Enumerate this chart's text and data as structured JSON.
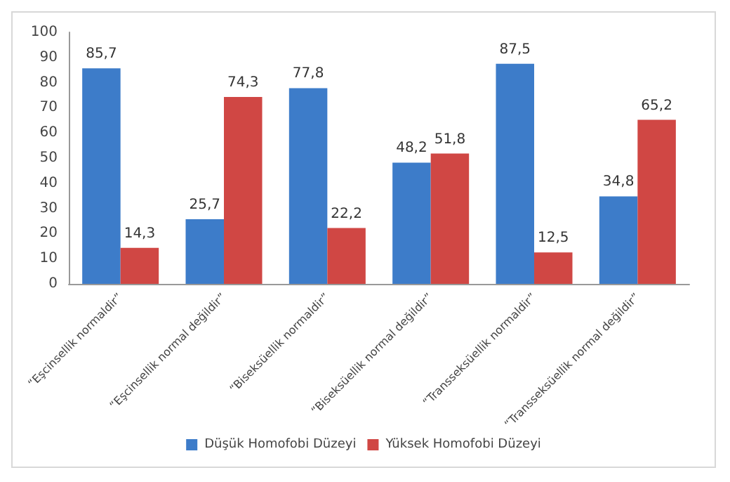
{
  "chart_data": {
    "type": "bar",
    "categories": [
      "“Eşcinsellik normaldir”",
      "“Eşcinsellik normal değildir”",
      "“Biseksüellik normaldir”",
      "“Biseksüellik normal değildir”",
      "“Transseksüellik normaldir”",
      "“Transseksüellik normal değildir”"
    ],
    "series": [
      {
        "name": "Düşük Homofobi Düzeyi",
        "color": "#3d7cc9",
        "values": [
          85.7,
          25.7,
          77.8,
          48.2,
          87.5,
          34.8
        ],
        "value_labels": [
          "85,7",
          "25,7",
          "77,8",
          "48,2",
          "87,5",
          "34,8"
        ]
      },
      {
        "name": "Yüksek Homofobi Düzeyi",
        "color": "#d04744",
        "values": [
          14.3,
          74.3,
          22.2,
          51.8,
          12.5,
          65.2
        ],
        "value_labels": [
          "14,3",
          "74,3",
          "22,2",
          "51,8",
          "12,5",
          "65,2"
        ]
      }
    ],
    "ylim": [
      0,
      100
    ],
    "yticks": [
      0,
      10,
      20,
      30,
      40,
      50,
      60,
      70,
      80,
      90,
      100
    ],
    "grid": false,
    "legend": "bottom"
  }
}
